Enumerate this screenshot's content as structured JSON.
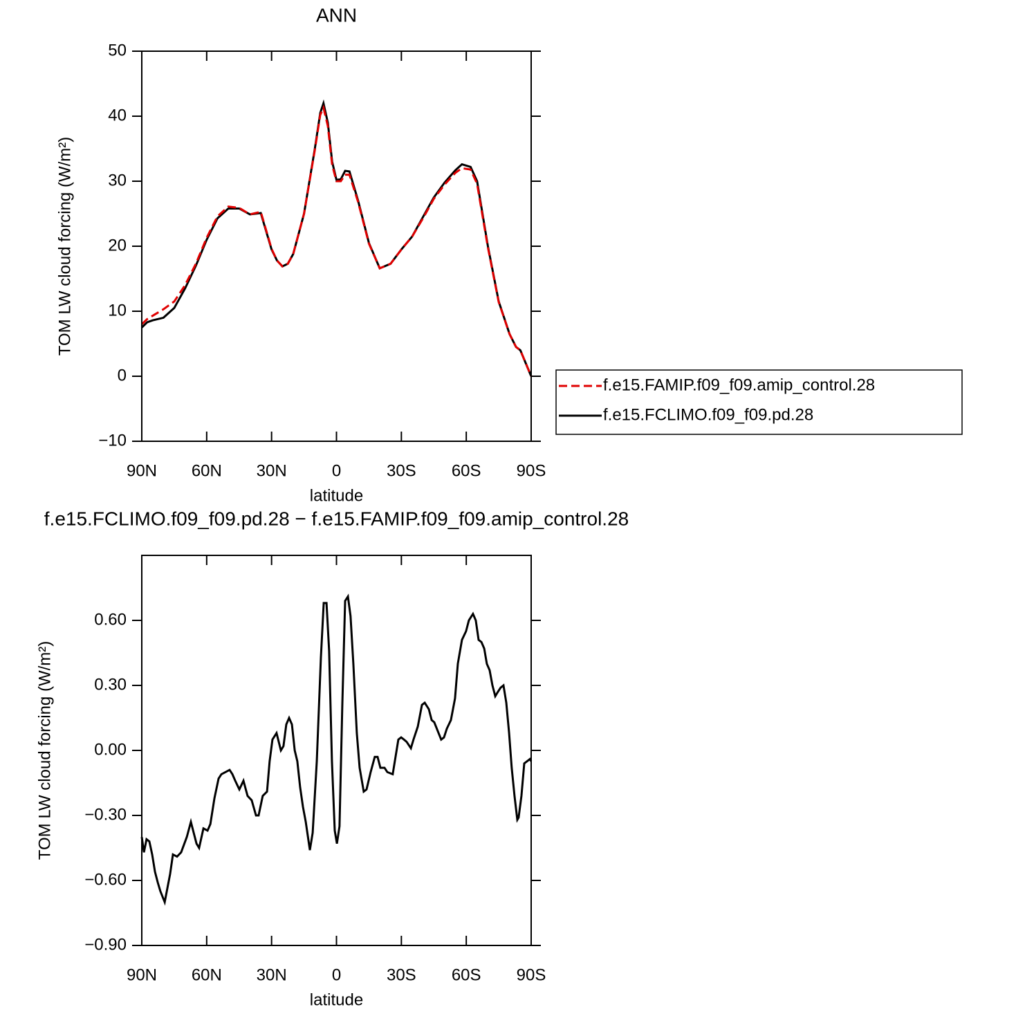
{
  "chart_data": [
    {
      "type": "line",
      "title": "ANN",
      "xlabel": "latitude",
      "ylabel": "TOM LW cloud forcing (W/m²)",
      "xlim": [
        90,
        -90
      ],
      "ylim": [
        -10,
        50
      ],
      "xticks": [
        {
          "value": 90,
          "label": "90N"
        },
        {
          "value": 60,
          "label": "60N"
        },
        {
          "value": 30,
          "label": "30N"
        },
        0,
        {
          "value": -30,
          "label": "30S"
        },
        {
          "value": -60,
          "label": "60S"
        },
        {
          "value": -90,
          "label": "90S"
        }
      ],
      "yticks": [
        {
          "value": -10,
          "label": "−10"
        },
        0,
        10,
        20,
        30,
        40,
        50
      ],
      "legend": "right",
      "x": [
        90,
        87.5,
        85,
        80,
        75,
        70,
        65,
        60,
        55,
        50,
        45,
        40,
        35,
        30,
        27.5,
        25,
        22.5,
        20,
        15,
        10,
        7.5,
        6,
        4,
        2,
        0,
        -2,
        -4,
        -6,
        -10,
        -15,
        -20,
        -25,
        -30,
        -35,
        -40,
        -45,
        -50,
        -55,
        -58,
        -62,
        -65,
        -70,
        -75,
        -80,
        -83,
        -85,
        -87.5,
        -90
      ],
      "series": [
        {
          "name": "f.e15.FAMIP.f09_f09.amip_control.28",
          "color": "#e00000",
          "line_style": "dashed",
          "values": [
            8,
            8.8,
            9.3,
            10.3,
            11.5,
            14,
            17.3,
            21.3,
            24.6,
            26.1,
            25.9,
            24.9,
            25.3,
            19.6,
            17.8,
            16.9,
            17.3,
            18.8,
            25,
            34.8,
            40.2,
            41.3,
            38.5,
            32.5,
            30,
            30,
            31,
            31,
            26.8,
            20.4,
            16.6,
            17.3,
            19.5,
            21.5,
            24.3,
            27.3,
            29.5,
            31.3,
            32,
            31.8,
            29.6,
            19.8,
            11.4,
            6.5,
            4.5,
            4,
            2,
            0
          ]
        },
        {
          "name": "f.e15.FCLIMO.f09_f09.pd.28",
          "color": "#000000",
          "line_style": "solid",
          "values": [
            7.5,
            8.3,
            8.6,
            9,
            10.5,
            13.5,
            17,
            21,
            24.3,
            25.8,
            25.8,
            24.9,
            25.1,
            19.5,
            17.8,
            16.9,
            17.3,
            18.8,
            25,
            35,
            40.5,
            42,
            39,
            33,
            30.2,
            30.3,
            31.6,
            31.5,
            27,
            20.5,
            16.6,
            17.3,
            19.5,
            21.5,
            24.5,
            27.5,
            29.8,
            31.7,
            32.6,
            32.2,
            30,
            20,
            11.5,
            6.5,
            4.5,
            4,
            2,
            0
          ]
        }
      ]
    },
    {
      "type": "line",
      "title": "f.e15.FCLIMO.f09_f09.pd.28 − f.e15.FAMIP.f09_f09.amip_control.28",
      "xlabel": "latitude",
      "ylabel": "TOM LW cloud forcing (W/m²)",
      "xlim": [
        90,
        -90
      ],
      "ylim": [
        -0.9,
        0.9
      ],
      "xticks": [
        {
          "value": 90,
          "label": "90N"
        },
        {
          "value": 60,
          "label": "60N"
        },
        {
          "value": 30,
          "label": "30N"
        },
        0,
        {
          "value": -30,
          "label": "30S"
        },
        {
          "value": -60,
          "label": "60S"
        },
        {
          "value": -90,
          "label": "90S"
        }
      ],
      "yticks": [
        {
          "value": -0.9,
          "label": "−0.90"
        },
        {
          "value": -0.6,
          "label": "−0.60"
        },
        {
          "value": -0.3,
          "label": "−0.30"
        },
        {
          "value": 0,
          "label": "0.00"
        },
        {
          "value": 0.3,
          "label": "0.30"
        },
        {
          "value": 0.6,
          "label": "0.60"
        }
      ],
      "color": "#000000",
      "x": [
        90,
        89,
        87.8,
        86.5,
        85.2,
        83.9,
        82.6,
        81.4,
        79.4,
        76.9,
        75.6,
        73.7,
        71.8,
        69.2,
        67.3,
        66,
        64.7,
        63.5,
        61.5,
        59.6,
        58.3,
        56.4,
        54.5,
        53.2,
        51.3,
        49.4,
        48.1,
        46.8,
        44.9,
        43,
        41.1,
        39.2,
        37.2,
        36,
        34.1,
        32.1,
        30.9,
        29.6,
        27.7,
        25.7,
        24.5,
        23.2,
        21.9,
        20.6,
        19.3,
        18.1,
        16.8,
        15.5,
        14.2,
        12.3,
        11,
        9.1,
        7.2,
        5.9,
        4.6,
        3.4,
        2.1,
        0.8,
        -0.2,
        -1.4,
        -2.7,
        -4,
        -5.3,
        -6.5,
        -7.8,
        -9.4,
        -10.7,
        -12.6,
        -13.9,
        -15.8,
        -17.7,
        -19,
        -20.3,
        -22.2,
        -23.5,
        -26,
        -27.3,
        -28.6,
        -29.9,
        -31.2,
        -32.4,
        -34.4,
        -35.6,
        -37.6,
        -39.5,
        -40.8,
        -42.7,
        -44,
        -45.2,
        -47.2,
        -48.4,
        -49.7,
        -51,
        -52.9,
        -54.8,
        -56.1,
        -58,
        -59.9,
        -61.2,
        -63.1,
        -64.4,
        -65.7,
        -67,
        -68.3,
        -69.5,
        -70.8,
        -72.1,
        -73.4,
        -74.6,
        -75.9,
        -77.2,
        -78.5,
        -79.8,
        -81,
        -82.3,
        -83.6,
        -84.2,
        -85.5,
        -86.8,
        -88.1,
        -89.4,
        -90
      ],
      "values": [
        -0.4,
        -0.47,
        -0.41,
        -0.42,
        -0.48,
        -0.56,
        -0.61,
        -0.65,
        -0.7,
        -0.57,
        -0.48,
        -0.49,
        -0.47,
        -0.4,
        -0.33,
        -0.38,
        -0.43,
        -0.45,
        -0.36,
        -0.37,
        -0.34,
        -0.22,
        -0.13,
        -0.11,
        -0.1,
        -0.09,
        -0.11,
        -0.14,
        -0.18,
        -0.14,
        -0.21,
        -0.23,
        -0.3,
        -0.3,
        -0.21,
        -0.19,
        -0.05,
        0.05,
        0.08,
        0,
        0.02,
        0.12,
        0.15,
        0.12,
        0,
        -0.05,
        -0.17,
        -0.26,
        -0.33,
        -0.46,
        -0.38,
        -0.05,
        0.43,
        0.68,
        0.68,
        0.46,
        -0.05,
        -0.37,
        -0.43,
        -0.35,
        0.21,
        0.69,
        0.71,
        0.62,
        0.4,
        0.08,
        -0.08,
        -0.19,
        -0.18,
        -0.1,
        -0.03,
        -0.03,
        -0.08,
        -0.08,
        -0.1,
        -0.11,
        -0.03,
        0.05,
        0.06,
        0.05,
        0.04,
        0.01,
        0.05,
        0.11,
        0.21,
        0.22,
        0.19,
        0.14,
        0.13,
        0.08,
        0.05,
        0.06,
        0.1,
        0.14,
        0.24,
        0.4,
        0.51,
        0.55,
        0.6,
        0.63,
        0.6,
        0.51,
        0.5,
        0.47,
        0.4,
        0.37,
        0.3,
        0.25,
        0.27,
        0.29,
        0.3,
        0.22,
        0.08,
        -0.08,
        -0.21,
        -0.32,
        -0.31,
        -0.21,
        -0.06,
        -0.05,
        -0.04,
        -0.05
      ]
    }
  ]
}
